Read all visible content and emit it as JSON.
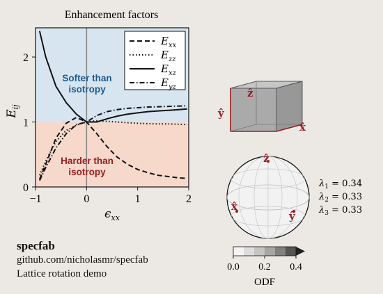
{
  "chart_data": {
    "type": "line",
    "title": "Enhancement factors",
    "xlabel": "ε_xx",
    "ylabel": "E_ij",
    "xlim": [
      -1,
      2
    ],
    "ylim": [
      0,
      2.45
    ],
    "xticks": [
      "−1",
      "0",
      "1",
      "2"
    ],
    "yticks": [
      "0",
      "1",
      "2"
    ],
    "region_labels": {
      "softer": [
        "Softer than",
        "isotropy"
      ],
      "harder": [
        "Harder than",
        "isotropy"
      ]
    },
    "colors": {
      "softer_fill": "#d6e5f0",
      "harder_fill": "#f6d9cb",
      "softer_text": "#1f5a8a",
      "harder_text": "#9b1b24",
      "zero_line": "#888888"
    },
    "legend_position": "top-right",
    "series": [
      {
        "name": "E_xx",
        "label_base": "E",
        "label_sub": "xx",
        "dash": "dashed",
        "x": [
          -0.92,
          -0.8,
          -0.6,
          -0.4,
          -0.2,
          0,
          0.2,
          0.4,
          0.6,
          0.8,
          1.0,
          1.2,
          1.4,
          1.6,
          1.8,
          1.97
        ],
        "y": [
          0.12,
          0.35,
          0.75,
          0.98,
          1.07,
          1.0,
          0.82,
          0.62,
          0.46,
          0.35,
          0.27,
          0.22,
          0.18,
          0.16,
          0.14,
          0.13
        ]
      },
      {
        "name": "E_zz",
        "label_base": "E",
        "label_sub": "zz",
        "dash": "dotted",
        "x": [
          -0.92,
          -0.8,
          -0.6,
          -0.4,
          -0.2,
          0,
          0.2,
          0.4,
          0.6,
          0.8,
          1.0,
          1.2,
          1.4,
          1.6,
          1.8,
          1.97
        ],
        "y": [
          0.18,
          0.4,
          0.7,
          0.87,
          0.95,
          1.0,
          1.02,
          1.01,
          1.0,
          0.99,
          0.98,
          0.975,
          0.97,
          0.97,
          0.965,
          0.96
        ]
      },
      {
        "name": "E_xz",
        "label_base": "E",
        "label_sub": "xz",
        "dash": "solid",
        "x": [
          -0.92,
          -0.8,
          -0.6,
          -0.4,
          -0.2,
          0,
          0.2,
          0.4,
          0.6,
          0.8,
          1.0,
          1.2,
          1.4,
          1.6,
          1.8,
          1.97
        ],
        "y": [
          2.4,
          2.0,
          1.55,
          1.3,
          1.12,
          1.0,
          1.0,
          1.05,
          1.09,
          1.12,
          1.14,
          1.16,
          1.17,
          1.18,
          1.19,
          1.2
        ]
      },
      {
        "name": "E_yz",
        "label_base": "E",
        "label_sub": "yz",
        "dash": "dashdot",
        "x": [
          -0.92,
          -0.8,
          -0.6,
          -0.4,
          -0.2,
          0,
          0.2,
          0.4,
          0.6,
          0.8,
          1.0,
          1.2,
          1.4,
          1.6,
          1.8,
          1.97
        ],
        "y": [
          0.1,
          0.3,
          0.6,
          0.82,
          0.96,
          1.0,
          1.1,
          1.16,
          1.19,
          1.21,
          1.22,
          1.23,
          1.235,
          1.24,
          1.245,
          1.25
        ]
      }
    ]
  },
  "eigenvalues": [
    {
      "label": "λ1 = 0.34",
      "base": "λ",
      "sub": "1",
      "value": "0.34"
    },
    {
      "label": "λ2 = 0.33",
      "base": "λ",
      "sub": "2",
      "value": "0.33"
    },
    {
      "label": "λ3 = 0.33",
      "base": "λ",
      "sub": "3",
      "value": "0.33"
    }
  ],
  "axes_labels": {
    "x": "x̂",
    "y": "ŷ",
    "z": "ẑ"
  },
  "colorbar": {
    "label": "ODF",
    "ticks": [
      "0.0",
      "0.2",
      "0.4"
    ]
  },
  "info": {
    "title": "specfab",
    "url": "github.com/nicholasmr/specfab",
    "desc": "Lattice rotation demo"
  },
  "colors": {
    "axis_red": "#9b1b24",
    "box_fill": "#a6a6a6",
    "sphere_fill": "#f2f2f2"
  }
}
